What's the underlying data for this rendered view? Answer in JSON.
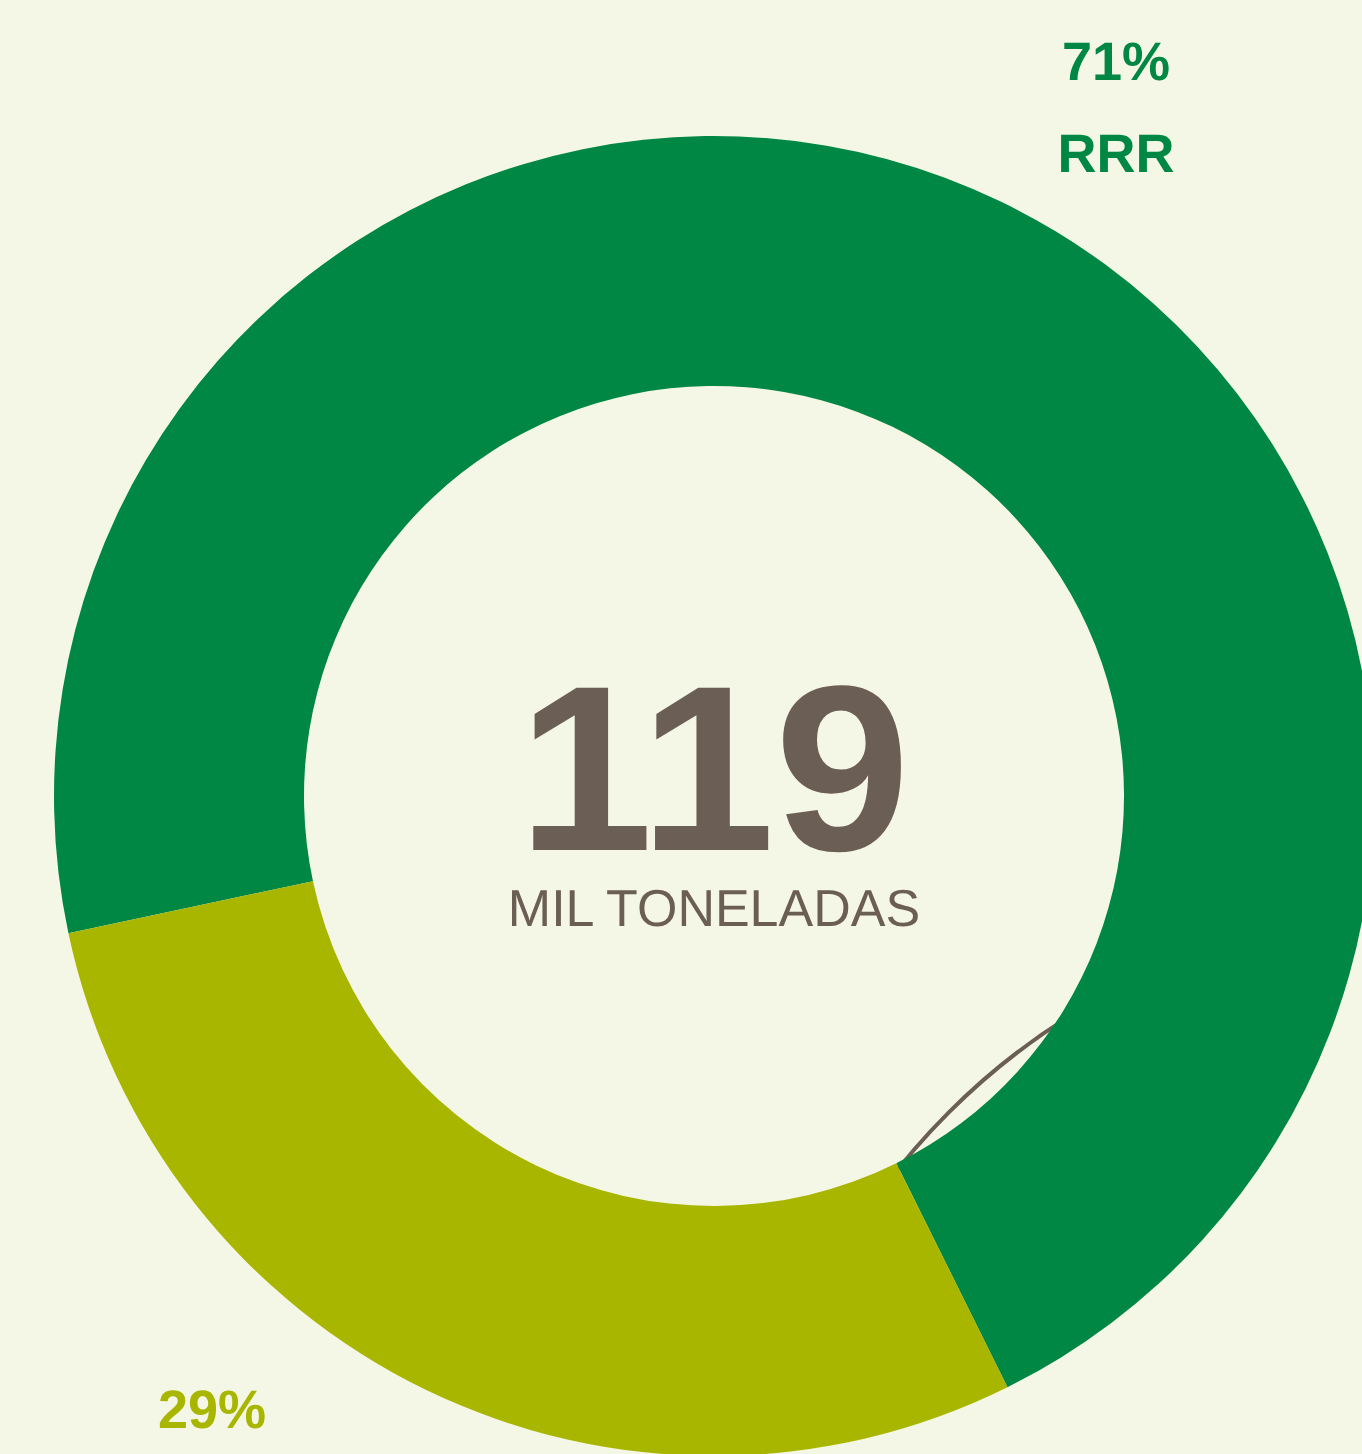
{
  "chart_data": {
    "type": "donut",
    "title": "119",
    "subtitle": "MIL TONELADAS",
    "categories": [
      "RRR",
      null
    ],
    "values": [
      71,
      29
    ],
    "colors": [
      "#008744",
      "#a9b600"
    ],
    "value_labels": [
      "71%",
      "29%"
    ]
  }
}
